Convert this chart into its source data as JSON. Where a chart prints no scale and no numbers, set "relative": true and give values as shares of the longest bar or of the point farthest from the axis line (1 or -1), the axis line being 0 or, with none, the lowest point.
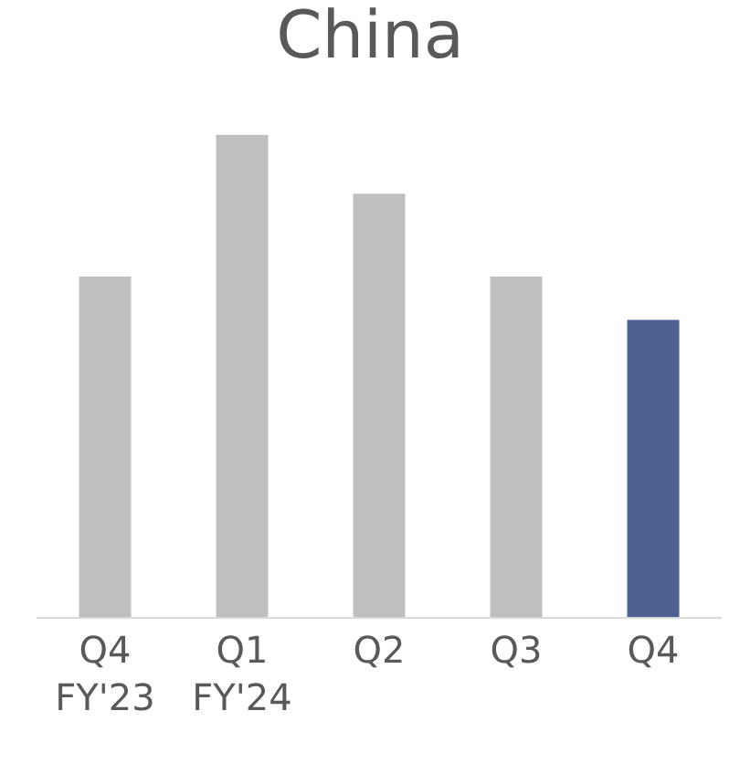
{
  "chart_data": {
    "type": "bar",
    "title": "China",
    "relative": true,
    "categories": [
      "Q4\nFY'23",
      "Q1\nFY'24",
      "Q2",
      "Q3",
      "Q4"
    ],
    "values": [
      0.706,
      1,
      0.878,
      0.706,
      0.616
    ],
    "colors": [
      "#bfbfbf",
      "#bfbfbf",
      "#bfbfbf",
      "#bfbfbf",
      "#4f6193"
    ]
  }
}
